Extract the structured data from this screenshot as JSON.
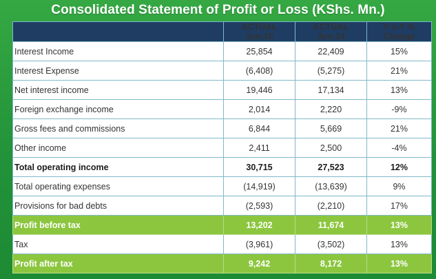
{
  "title": "Consolidated Statement of  Profit or Loss (KShs. Mn.)",
  "columns": [
    {
      "line1": "ACTUAL",
      "line2": "Jun-15"
    },
    {
      "line1": "ACTUAL",
      "line2": "Jun-14"
    },
    {
      "line1": "Y-o-Y %",
      "line2": "Change"
    }
  ],
  "rows": [
    {
      "label": "Interest Income",
      "jun15": "25,854",
      "jun14": "22,409",
      "change": "15%"
    },
    {
      "label": "Interest Expense",
      "jun15": "(6,408)",
      "jun14": "(5,275)",
      "change": "21%"
    },
    {
      "label": "Net interest income",
      "jun15": "19,446",
      "jun14": "17,134",
      "change": "13%"
    },
    {
      "label": "Foreign exchange income",
      "jun15": "2,014",
      "jun14": "2,220",
      "change": "-9%"
    },
    {
      "label": "Gross fees and commissions",
      "jun15": "6,844",
      "jun14": "5,669",
      "change": "21%"
    },
    {
      "label": "Other income",
      "jun15": "2,411",
      "jun14": "2,500",
      "change": "-4%"
    },
    {
      "label": "Total operating income",
      "jun15": "30,715",
      "jun14": "27,523",
      "change": "12%"
    },
    {
      "label": "Total operating expenses",
      "jun15": "(14,919)",
      "jun14": "(13,639)",
      "change": "9%"
    },
    {
      "label": "Provisions for bad debts",
      "jun15": "(2,593)",
      "jun14": "(2,210)",
      "change": "17%"
    },
    {
      "label": "Profit before tax",
      "jun15": "13,202",
      "jun14": "11,674",
      "change": "13%"
    },
    {
      "label": "Tax",
      "jun15": "(3,961)",
      "jun14": "(3,502)",
      "change": "13%"
    },
    {
      "label": "Profit after tax",
      "jun15": "9,242",
      "jun14": "8,172",
      "change": "13%"
    }
  ],
  "colors": {
    "background": "#2a9a3e",
    "header": "#1f3d63",
    "highlight_row": "#8cc63f"
  }
}
